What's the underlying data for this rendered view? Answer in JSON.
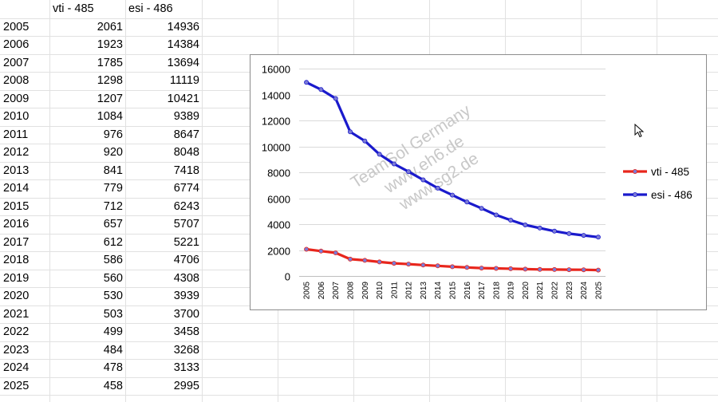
{
  "sheet": {
    "headers": {
      "col_a": "",
      "col_b": "vti - 485",
      "col_c": "esi - 486"
    },
    "rows": [
      [
        "2005",
        "2061",
        "14936"
      ],
      [
        "2006",
        "1923",
        "14384"
      ],
      [
        "2007",
        "1785",
        "13694"
      ],
      [
        "2008",
        "1298",
        "11119"
      ],
      [
        "2009",
        "1207",
        "10421"
      ],
      [
        "2010",
        "1084",
        "9389"
      ],
      [
        "2011",
        "976",
        "8647"
      ],
      [
        "2012",
        "920",
        "8048"
      ],
      [
        "2013",
        "841",
        "7418"
      ],
      [
        "2014",
        "779",
        "6774"
      ],
      [
        "2015",
        "712",
        "6243"
      ],
      [
        "2016",
        "657",
        "5707"
      ],
      [
        "2017",
        "612",
        "5221"
      ],
      [
        "2018",
        "586",
        "4706"
      ],
      [
        "2019",
        "560",
        "4308"
      ],
      [
        "2020",
        "530",
        "3939"
      ],
      [
        "2021",
        "503",
        "3700"
      ],
      [
        "2022",
        "499",
        "3458"
      ],
      [
        "2023",
        "484",
        "3268"
      ],
      [
        "2024",
        "478",
        "3133"
      ],
      [
        "2025",
        "458",
        "2995"
      ]
    ]
  },
  "watermark": {
    "lines": [
      "TeamSol Germany",
      "www.eh6.de",
      "www.sg2.de"
    ],
    "color": "#c8c8c8"
  },
  "colors": {
    "grid": "#d9d9d9",
    "cell_border": "#e1e1e1",
    "vti_line": "#e8261c",
    "esi_line": "#1a1acc",
    "marker_fill": "#7b7bd6"
  },
  "chart_data": {
    "type": "line",
    "title": "",
    "xlabel": "",
    "ylabel": "",
    "categories": [
      "2005",
      "2006",
      "2007",
      "2008",
      "2009",
      "2010",
      "2011",
      "2012",
      "2013",
      "2014",
      "2015",
      "2016",
      "2017",
      "2018",
      "2019",
      "2020",
      "2021",
      "2022",
      "2023",
      "2024",
      "2025"
    ],
    "ylim": [
      0,
      16000
    ],
    "yticks": [
      0,
      2000,
      4000,
      6000,
      8000,
      10000,
      12000,
      14000,
      16000
    ],
    "grid": true,
    "legend_position": "right",
    "series": [
      {
        "name": "vti - 485",
        "color": "#e8261c",
        "values": [
          2061,
          1923,
          1785,
          1298,
          1207,
          1084,
          976,
          920,
          841,
          779,
          712,
          657,
          612,
          586,
          560,
          530,
          503,
          499,
          484,
          478,
          458
        ]
      },
      {
        "name": "esi - 486",
        "color": "#1a1acc",
        "values": [
          14936,
          14384,
          13694,
          11119,
          10421,
          9389,
          8647,
          8048,
          7418,
          6774,
          6243,
          5707,
          5221,
          4706,
          4308,
          3939,
          3700,
          3458,
          3268,
          3133,
          2995
        ]
      }
    ]
  }
}
